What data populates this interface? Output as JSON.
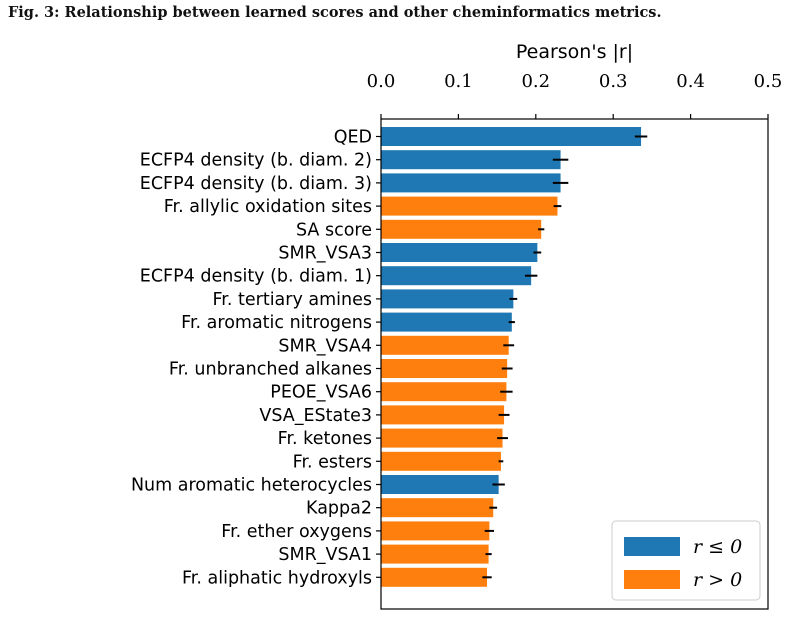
{
  "caption": "Fig. 3: Relationship between learned scores and other cheminformatics metrics.",
  "chart_data": {
    "type": "bar",
    "orientation": "horizontal",
    "xlabel": "Pearson's |r|",
    "xlim": [
      0,
      0.5
    ],
    "xticks": [
      "0.0",
      "0.1",
      "0.2",
      "0.3",
      "0.4",
      "0.5"
    ],
    "x_axis_position": "top",
    "grid": false,
    "legend_position": "bottom-right",
    "colors": {
      "r_le_0": "#1f77b4",
      "r_gt_0": "#ff7f0e",
      "error": "#000000"
    },
    "legend": [
      {
        "key": "r_le_0",
        "label": "r ≤ 0"
      },
      {
        "key": "r_gt_0",
        "label": "r > 0"
      }
    ],
    "categories": [
      "QED",
      "ECFP4 density (b. diam. 2)",
      "ECFP4 density (b. diam. 3)",
      "Fr. allylic oxidation sites",
      "SA score",
      "SMR_VSA3",
      "ECFP4 density (b. diam. 1)",
      "Fr. tertiary amines",
      "Fr. aromatic nitrogens",
      "SMR_VSA4",
      "Fr. unbranched alkanes",
      "PEOE_VSA6",
      "VSA_EState3",
      "Fr. ketones",
      "Fr. esters",
      "Num aromatic heterocycles",
      "Kappa2",
      "Fr. ether oxygens",
      "SMR_VSA1",
      "Fr. aliphatic hydroxyls"
    ],
    "values": [
      0.336,
      0.232,
      0.232,
      0.228,
      0.207,
      0.202,
      0.194,
      0.171,
      0.169,
      0.165,
      0.163,
      0.162,
      0.159,
      0.157,
      0.155,
      0.152,
      0.145,
      0.14,
      0.139,
      0.137
    ],
    "errors": [
      0.008,
      0.01,
      0.01,
      0.005,
      0.004,
      0.005,
      0.008,
      0.005,
      0.004,
      0.007,
      0.007,
      0.008,
      0.007,
      0.007,
      0.003,
      0.008,
      0.005,
      0.006,
      0.004,
      0.006
    ],
    "sign": [
      "r_le_0",
      "r_le_0",
      "r_le_0",
      "r_gt_0",
      "r_gt_0",
      "r_le_0",
      "r_le_0",
      "r_le_0",
      "r_le_0",
      "r_gt_0",
      "r_gt_0",
      "r_gt_0",
      "r_gt_0",
      "r_gt_0",
      "r_gt_0",
      "r_le_0",
      "r_gt_0",
      "r_gt_0",
      "r_gt_0",
      "r_gt_0"
    ]
  }
}
